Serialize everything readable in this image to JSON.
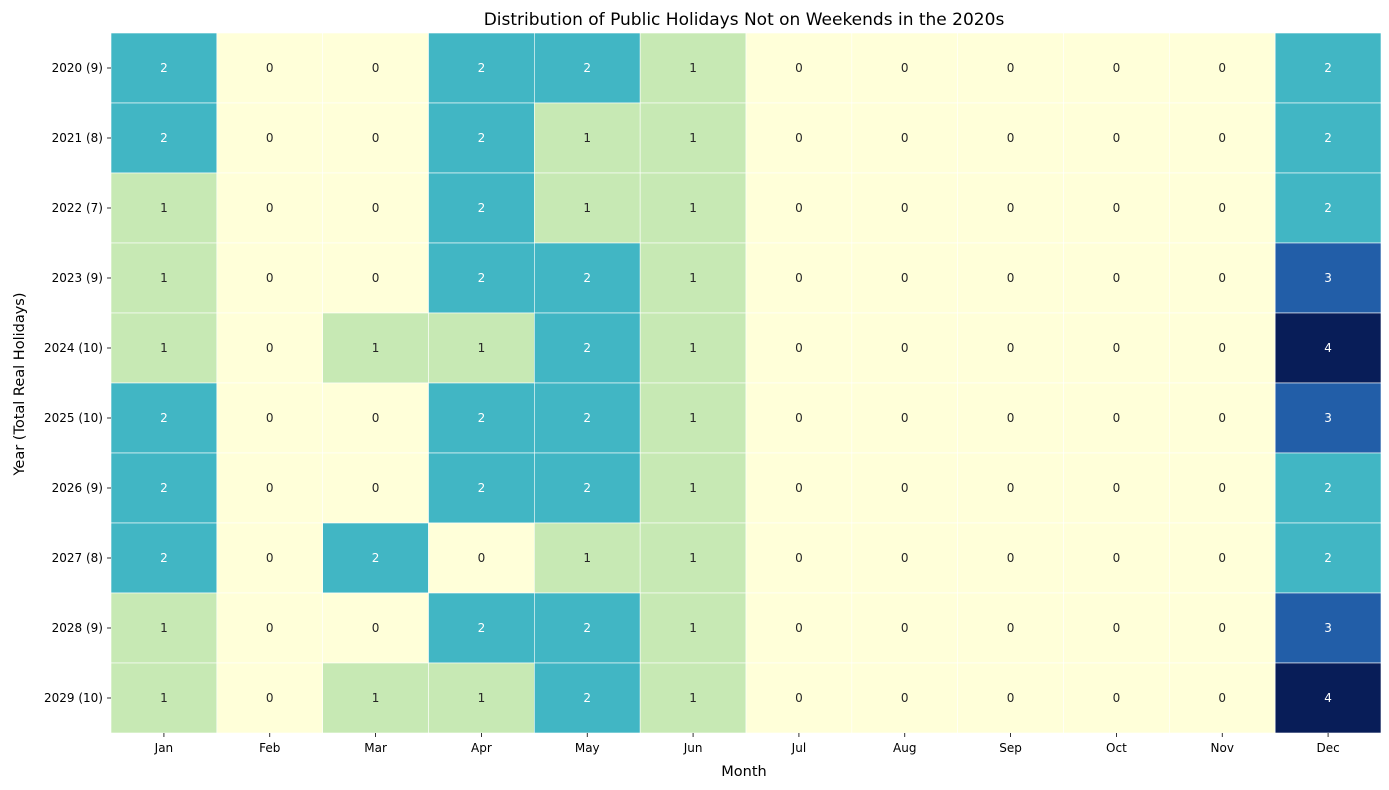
{
  "chart_data": {
    "type": "heatmap",
    "title": "Distribution of Public Holidays Not on Weekends in the 2020s",
    "xlabel": "Month",
    "ylabel": "Year (Total Real Holidays)",
    "x_categories": [
      "Jan",
      "Feb",
      "Mar",
      "Apr",
      "May",
      "Jun",
      "Jul",
      "Aug",
      "Sep",
      "Oct",
      "Nov",
      "Dec"
    ],
    "y_categories": [
      "2020 (9)",
      "2021 (8)",
      "2022 (7)",
      "2023 (9)",
      "2024 (10)",
      "2025 (10)",
      "2026 (9)",
      "2027 (8)",
      "2028 (9)",
      "2029 (10)"
    ],
    "values": [
      [
        2,
        0,
        0,
        2,
        2,
        1,
        0,
        0,
        0,
        0,
        0,
        2
      ],
      [
        2,
        0,
        0,
        2,
        1,
        1,
        0,
        0,
        0,
        0,
        0,
        2
      ],
      [
        1,
        0,
        0,
        2,
        1,
        1,
        0,
        0,
        0,
        0,
        0,
        2
      ],
      [
        1,
        0,
        0,
        2,
        2,
        1,
        0,
        0,
        0,
        0,
        0,
        3
      ],
      [
        1,
        0,
        1,
        1,
        2,
        1,
        0,
        0,
        0,
        0,
        0,
        4
      ],
      [
        2,
        0,
        0,
        2,
        2,
        1,
        0,
        0,
        0,
        0,
        0,
        3
      ],
      [
        2,
        0,
        0,
        2,
        2,
        1,
        0,
        0,
        0,
        0,
        0,
        2
      ],
      [
        2,
        0,
        2,
        0,
        1,
        1,
        0,
        0,
        0,
        0,
        0,
        2
      ],
      [
        1,
        0,
        0,
        2,
        2,
        1,
        0,
        0,
        0,
        0,
        0,
        3
      ],
      [
        1,
        0,
        1,
        1,
        2,
        1,
        0,
        0,
        0,
        0,
        0,
        4
      ]
    ],
    "value_range": [
      0,
      4
    ],
    "colormap": "YlGnBu",
    "color_scale": {
      "0": "#ffffd9",
      "1": "#c7e9b4",
      "2": "#41b6c4",
      "3": "#225ea8",
      "4": "#081d58"
    },
    "annotation_colors": {
      "light": "#ffffff",
      "dark": "#262626"
    },
    "grid_line_color": "#ffffff",
    "colorbar": false
  }
}
